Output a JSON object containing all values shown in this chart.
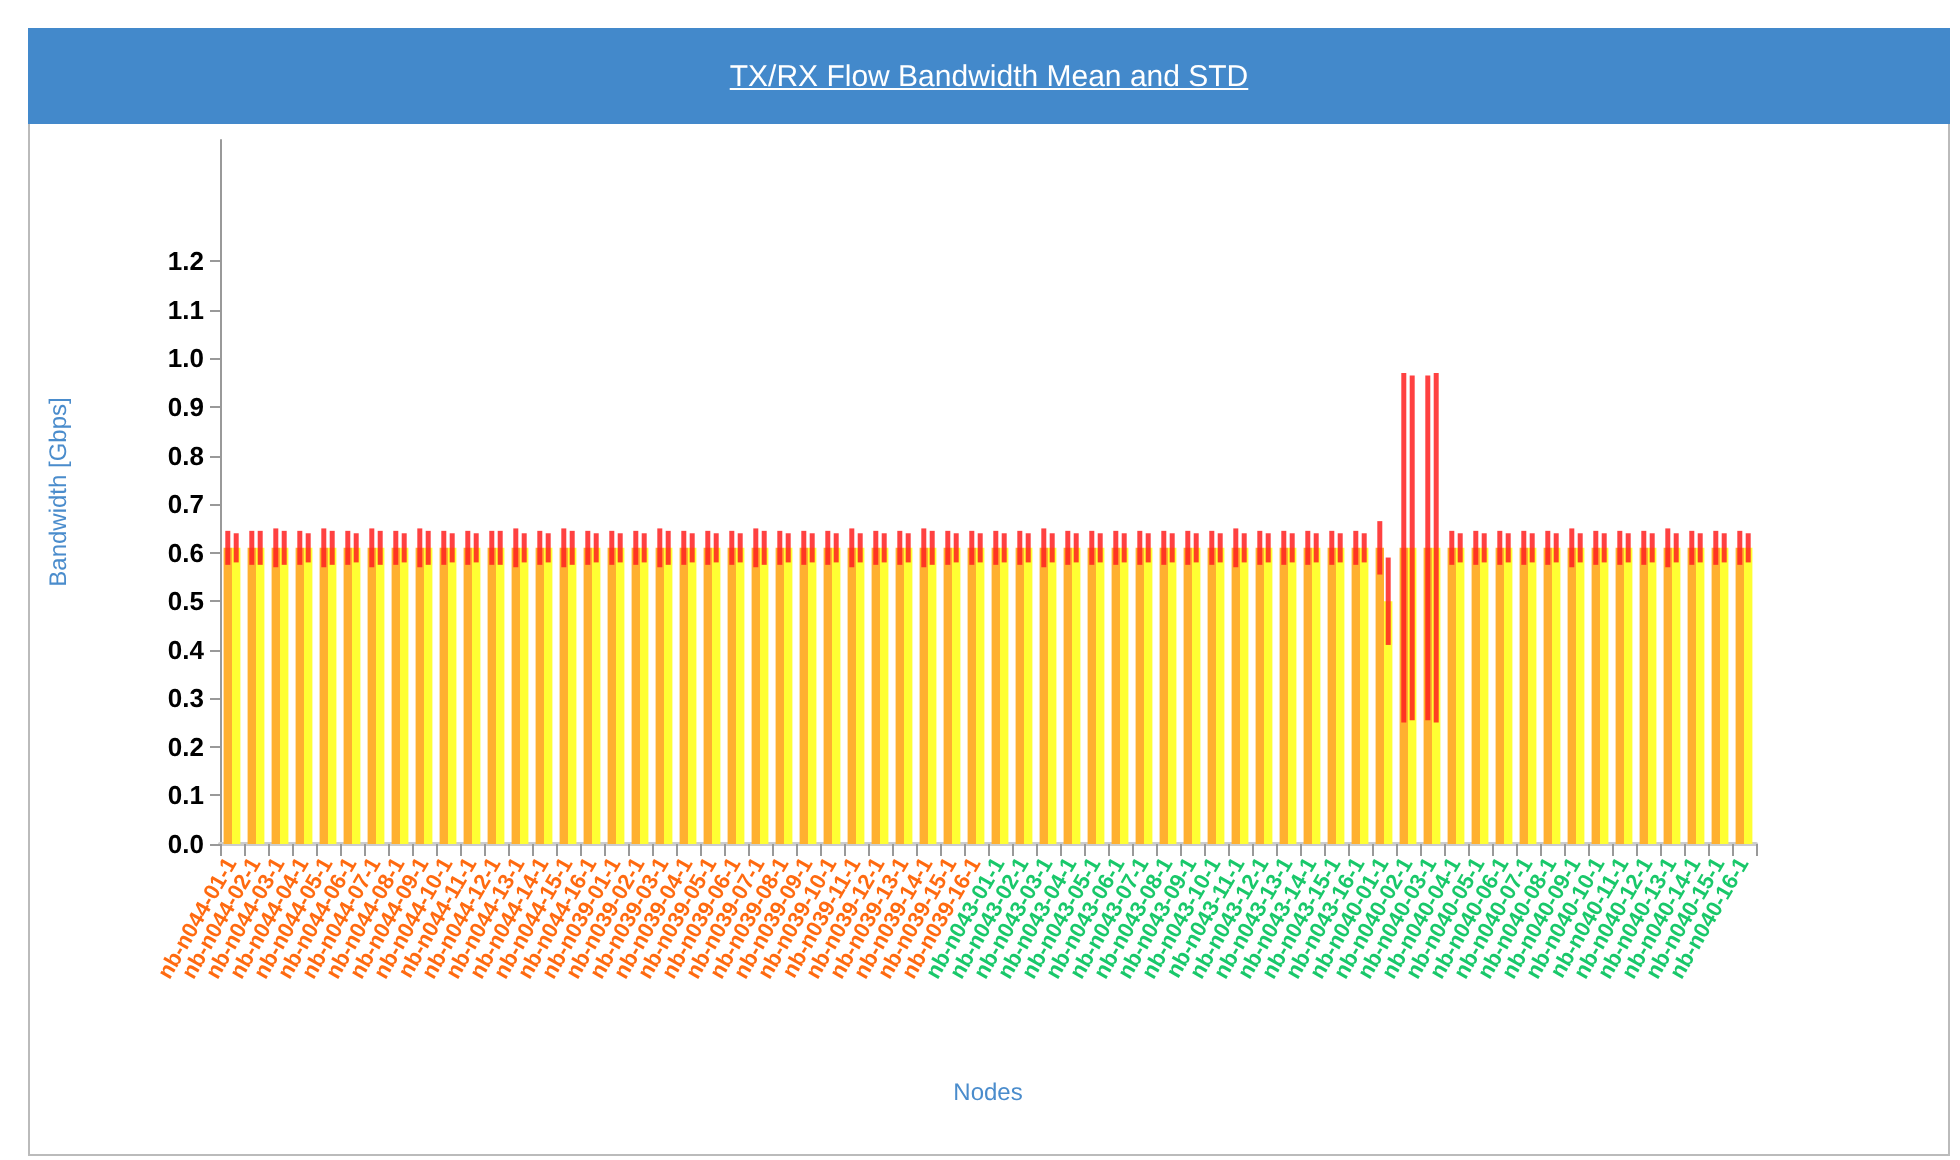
{
  "chart_data": {
    "type": "bar",
    "title": "TX/RX Flow Bandwidth Mean and STD",
    "xlabel": "Nodes",
    "ylabel": "Bandwidth [Gbps]",
    "categories": [
      "nb-n044-01-1",
      "nb-n044-02-1",
      "nb-n044-03-1",
      "nb-n044-04-1",
      "nb-n044-05-1",
      "nb-n044-06-1",
      "nb-n044-07-1",
      "nb-n044-08-1",
      "nb-n044-09-1",
      "nb-n044-10-1",
      "nb-n044-11-1",
      "nb-n044-12-1",
      "nb-n044-13-1",
      "nb-n044-14-1",
      "nb-n044-15-1",
      "nb-n044-16-1",
      "nb-n039-01-1",
      "nb-n039-02-1",
      "nb-n039-03-1",
      "nb-n039-04-1",
      "nb-n039-05-1",
      "nb-n039-06-1",
      "nb-n039-07-1",
      "nb-n039-08-1",
      "nb-n039-09-1",
      "nb-n039-10-1",
      "nb-n039-11-1",
      "nb-n039-12-1",
      "nb-n039-13-1",
      "nb-n039-14-1",
      "nb-n039-15-1",
      "nb-n039-16-1",
      "nb-n043-01-1",
      "nb-n043-02-1",
      "nb-n043-03-1",
      "nb-n043-04-1",
      "nb-n043-05-1",
      "nb-n043-06-1",
      "nb-n043-07-1",
      "nb-n043-08-1",
      "nb-n043-09-1",
      "nb-n043-10-1",
      "nb-n043-11-1",
      "nb-n043-12-1",
      "nb-n043-13-1",
      "nb-n043-14-1",
      "nb-n043-15-1",
      "nb-n043-16-1",
      "nb-n040-01-1",
      "nb-n040-02-1",
      "nb-n040-03-1",
      "nb-n040-04-1",
      "nb-n040-05-1",
      "nb-n040-06-1",
      "nb-n040-07-1",
      "nb-n040-08-1",
      "nb-n040-09-1",
      "nb-n040-10-1",
      "nb-n040-11-1",
      "nb-n040-12-1",
      "nb-n040-13-1",
      "nb-n040-14-1",
      "nb-n040-15-1",
      "nb-n040-16-1"
    ],
    "series": [
      {
        "color": "#ffb030",
        "values": [
          0.61,
          0.61,
          0.61,
          0.61,
          0.61,
          0.61,
          0.61,
          0.61,
          0.61,
          0.61,
          0.61,
          0.61,
          0.61,
          0.61,
          0.61,
          0.61,
          0.61,
          0.61,
          0.61,
          0.61,
          0.61,
          0.61,
          0.61,
          0.61,
          0.61,
          0.61,
          0.61,
          0.61,
          0.61,
          0.61,
          0.61,
          0.61,
          0.61,
          0.61,
          0.61,
          0.61,
          0.61,
          0.61,
          0.61,
          0.61,
          0.61,
          0.61,
          0.61,
          0.61,
          0.61,
          0.61,
          0.61,
          0.61,
          0.61,
          0.61,
          0.61,
          0.61,
          0.61,
          0.61,
          0.61,
          0.61,
          0.61,
          0.61,
          0.61,
          0.61,
          0.61,
          0.61,
          0.61,
          0.61
        ],
        "errors": [
          0.035,
          0.035,
          0.04,
          0.035,
          0.04,
          0.035,
          0.04,
          0.035,
          0.04,
          0.035,
          0.035,
          0.035,
          0.04,
          0.035,
          0.04,
          0.035,
          0.035,
          0.035,
          0.04,
          0.035,
          0.035,
          0.035,
          0.04,
          0.035,
          0.035,
          0.035,
          0.04,
          0.035,
          0.035,
          0.04,
          0.035,
          0.035,
          0.035,
          0.035,
          0.04,
          0.035,
          0.035,
          0.035,
          0.035,
          0.035,
          0.035,
          0.035,
          0.04,
          0.035,
          0.035,
          0.035,
          0.035,
          0.035,
          0.055,
          0.36,
          0.355,
          0.035,
          0.035,
          0.035,
          0.035,
          0.035,
          0.04,
          0.035,
          0.035,
          0.035,
          0.04,
          0.035,
          0.035,
          0.035
        ]
      },
      {
        "color": "#ffff33",
        "values": [
          0.61,
          0.61,
          0.61,
          0.61,
          0.61,
          0.61,
          0.61,
          0.61,
          0.61,
          0.61,
          0.61,
          0.61,
          0.61,
          0.61,
          0.61,
          0.61,
          0.61,
          0.61,
          0.61,
          0.61,
          0.61,
          0.61,
          0.61,
          0.61,
          0.61,
          0.61,
          0.61,
          0.61,
          0.61,
          0.61,
          0.61,
          0.61,
          0.61,
          0.61,
          0.61,
          0.61,
          0.61,
          0.61,
          0.61,
          0.61,
          0.61,
          0.61,
          0.61,
          0.61,
          0.61,
          0.61,
          0.61,
          0.61,
          0.5,
          0.61,
          0.61,
          0.61,
          0.61,
          0.61,
          0.61,
          0.61,
          0.61,
          0.61,
          0.61,
          0.61,
          0.61,
          0.61,
          0.61,
          0.61
        ],
        "errors": [
          0.03,
          0.035,
          0.035,
          0.03,
          0.035,
          0.03,
          0.035,
          0.03,
          0.035,
          0.03,
          0.03,
          0.035,
          0.03,
          0.03,
          0.035,
          0.03,
          0.03,
          0.03,
          0.035,
          0.03,
          0.03,
          0.03,
          0.035,
          0.03,
          0.03,
          0.03,
          0.03,
          0.03,
          0.03,
          0.035,
          0.03,
          0.03,
          0.03,
          0.03,
          0.03,
          0.03,
          0.03,
          0.03,
          0.03,
          0.03,
          0.03,
          0.03,
          0.03,
          0.03,
          0.03,
          0.03,
          0.03,
          0.03,
          0.09,
          0.355,
          0.36,
          0.03,
          0.03,
          0.03,
          0.03,
          0.03,
          0.03,
          0.03,
          0.03,
          0.03,
          0.03,
          0.03,
          0.03,
          0.03
        ]
      }
    ],
    "ylim": [
      0,
      1.45
    ],
    "yticks": [
      {
        "value": 0,
        "label": "0.0"
      },
      0.1,
      0.2,
      0.3,
      0.4,
      0.5,
      0.6,
      0.7,
      0.8,
      0.9,
      {
        "value": 1,
        "label": "1.0"
      },
      1.1,
      1.2
    ],
    "grid": false
  }
}
